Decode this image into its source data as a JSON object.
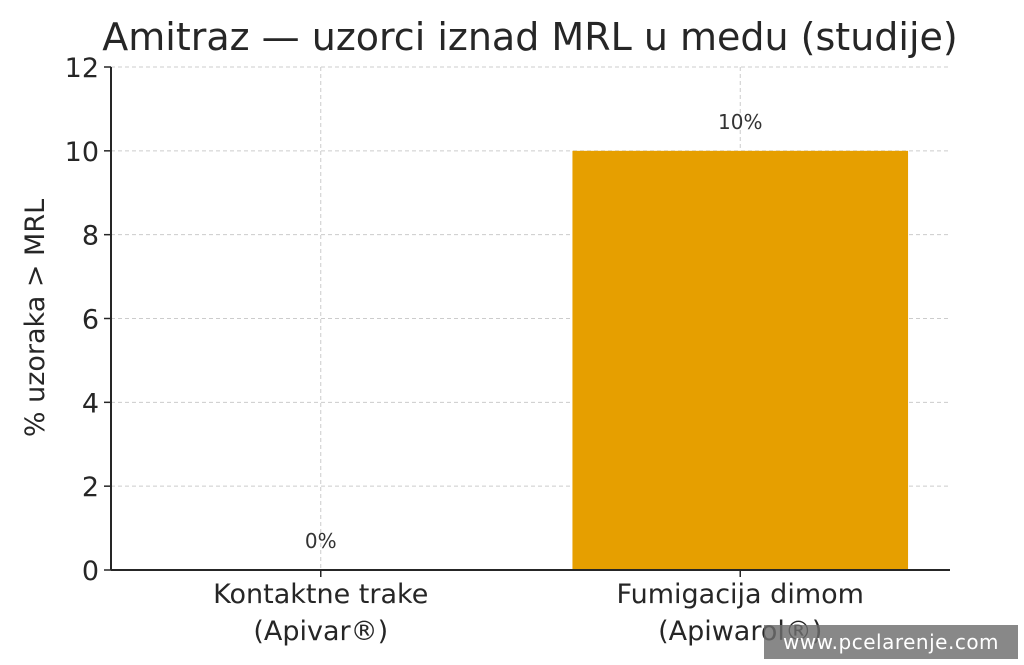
{
  "chart_data": {
    "type": "bar",
    "title": "Amitraz — uzorci iznad MRL u medu (studije)",
    "ylabel": "% uzoraka > MRL",
    "xlabel": "",
    "categories": [
      [
        "Kontaktne trake",
        "(Apivar®)"
      ],
      [
        "Fumigacija dimom",
        "(Apiwarol®)"
      ]
    ],
    "values": [
      0,
      10
    ],
    "value_labels": [
      "0%",
      "10%"
    ],
    "ylim": [
      0,
      12
    ],
    "yticks": [
      "0",
      "2",
      "4",
      "6",
      "8",
      "10",
      "12"
    ],
    "grid": true,
    "colors": {
      "bar": "#E69F00",
      "grid": "#cccccc",
      "axis": "#262626"
    }
  },
  "watermark": "www.pcelarenje.com"
}
